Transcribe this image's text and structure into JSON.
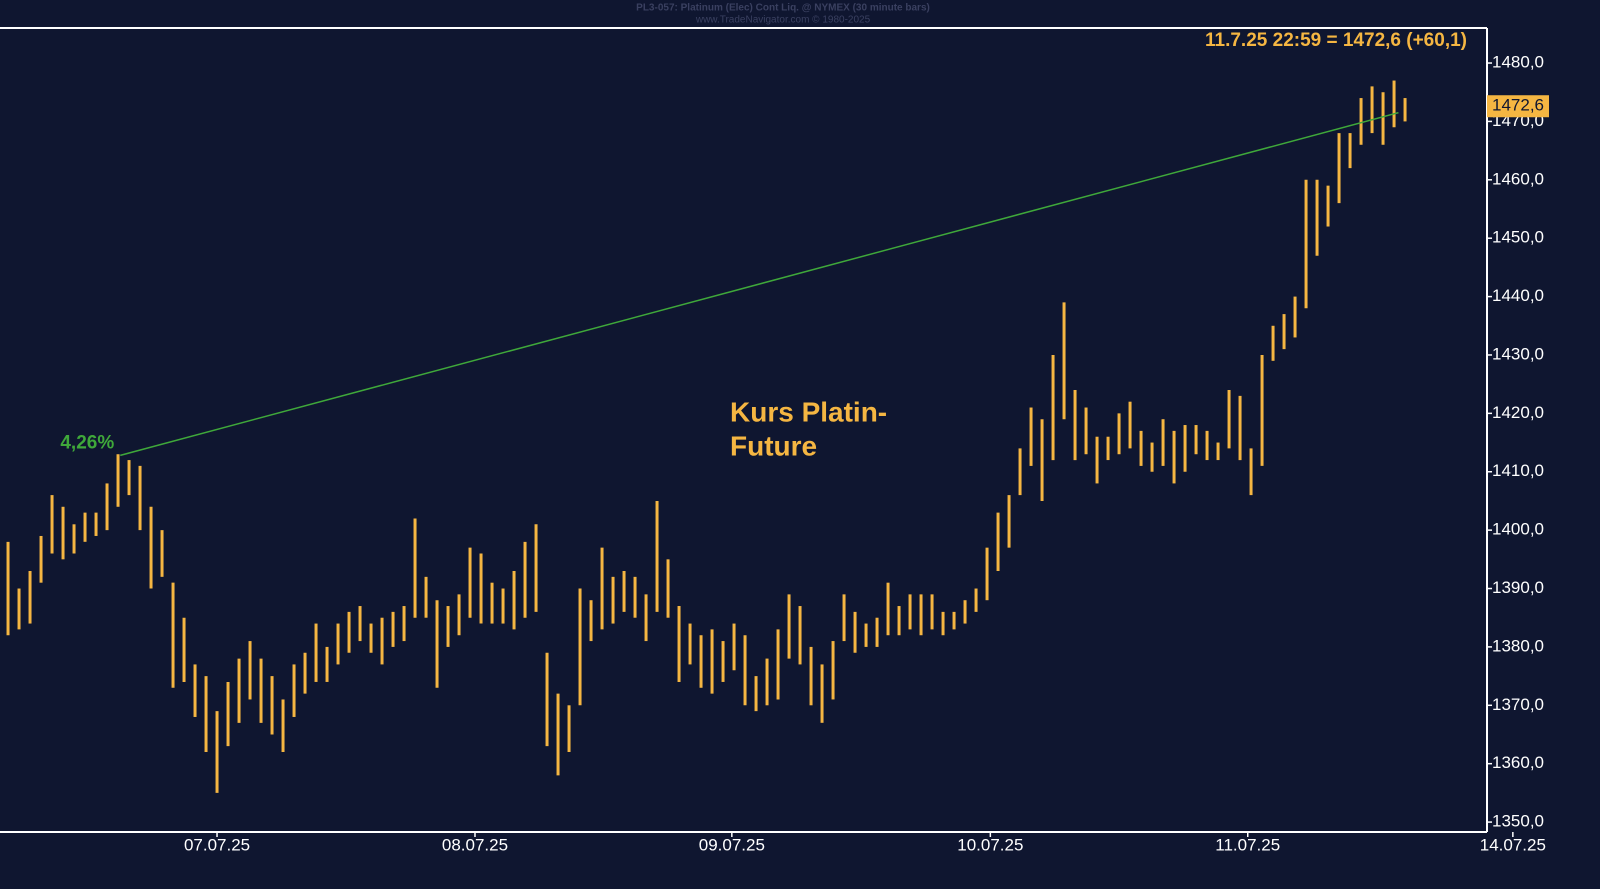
{
  "chart_data": {
    "type": "ohlc",
    "title": "PL3-057: Platinum (Elec) Cont Liq. @ NYMEX (30 minute bars)",
    "subtitle": "www.TradeNavigator.com © 1980-2025",
    "headline": "11.7.25 22:59 = 1472,6 (+60,1)",
    "annotation": [
      "Kurs Platin-",
      "Future"
    ],
    "last_price": {
      "value": 1472.6,
      "label": "1472,6"
    },
    "trendline": {
      "label": "4,26%",
      "x": [
        10.2,
        126.4
      ],
      "y": [
        1412.8,
        1471.5
      ],
      "color": "#3fa83a"
    },
    "color": "#f5b642",
    "x": [
      0,
      1,
      2,
      3,
      4,
      5,
      6,
      7,
      8,
      9,
      10,
      11,
      12,
      13,
      14,
      15,
      16,
      17,
      18,
      19,
      20,
      21,
      22,
      23,
      24,
      25,
      26,
      27,
      28,
      29,
      30,
      31,
      32,
      33,
      34,
      35,
      36,
      37,
      38,
      39,
      40,
      41,
      42,
      43,
      44,
      45,
      46,
      47,
      48,
      49,
      50,
      51,
      52,
      53,
      54,
      55,
      56,
      57,
      58,
      59,
      60,
      61,
      62,
      63,
      64,
      65,
      66,
      67,
      68,
      69,
      70,
      71,
      72,
      73,
      74,
      75,
      76,
      77,
      78,
      79,
      80,
      81,
      82,
      83,
      84,
      85,
      86,
      87,
      88,
      89,
      90,
      91,
      92,
      93,
      94,
      95,
      96,
      97,
      98,
      99,
      100,
      101,
      102,
      103,
      104,
      105,
      106,
      107,
      108,
      109,
      110,
      111,
      112,
      113,
      114,
      115,
      116,
      117,
      118,
      119,
      120,
      121,
      122,
      123,
      124,
      125,
      126,
      127
    ],
    "high": [
      1398,
      1390,
      1393,
      1399,
      1406,
      1404,
      1401,
      1403,
      1403,
      1408,
      1413,
      1412,
      1411,
      1404,
      1400,
      1391,
      1385,
      1377,
      1375,
      1369,
      1374,
      1378,
      1381,
      1378,
      1375,
      1371,
      1377,
      1379,
      1384,
      1380,
      1384,
      1386,
      1387,
      1384,
      1385,
      1386,
      1387,
      1402,
      1392,
      1388,
      1387,
      1389,
      1397,
      1396,
      1391,
      1390,
      1393,
      1398,
      1401,
      1379,
      1372,
      1370,
      1390,
      1388,
      1397,
      1392,
      1393,
      1392,
      1389,
      1405,
      1395,
      1387,
      1384,
      1382,
      1383,
      1381,
      1384,
      1382,
      1375,
      1378,
      1383,
      1389,
      1387,
      1380,
      1377,
      1381,
      1389,
      1386,
      1384,
      1385,
      1391,
      1387,
      1389,
      1389,
      1389,
      1386,
      1386,
      1388,
      1390,
      1397,
      1403,
      1406,
      1414,
      1421,
      1419,
      1430,
      1439,
      1424,
      1421,
      1416,
      1416,
      1420,
      1422,
      1417,
      1415,
      1419,
      1417,
      1418,
      1418,
      1417,
      1415,
      1424,
      1423,
      1414,
      1430,
      1435,
      1437,
      1440,
      1460,
      1460,
      1459,
      1468,
      1468,
      1474,
      1476,
      1475,
      1477,
      1474
    ],
    "low": [
      1382,
      1383,
      1384,
      1391,
      1396,
      1395,
      1396,
      1398,
      1399,
      1400,
      1404,
      1406,
      1400,
      1390,
      1392,
      1373,
      1374,
      1368,
      1362,
      1355,
      1363,
      1367,
      1371,
      1367,
      1365,
      1362,
      1368,
      1372,
      1374,
      1374,
      1377,
      1379,
      1381,
      1379,
      1377,
      1380,
      1381,
      1385,
      1385,
      1373,
      1380,
      1382,
      1385,
      1384,
      1384,
      1384,
      1383,
      1385,
      1386,
      1363,
      1358,
      1362,
      1370,
      1381,
      1383,
      1384,
      1386,
      1385,
      1381,
      1386,
      1385,
      1374,
      1377,
      1373,
      1372,
      1374,
      1376,
      1370,
      1369,
      1370,
      1371,
      1378,
      1377,
      1370,
      1367,
      1371,
      1381,
      1379,
      1380,
      1380,
      1382,
      1382,
      1383,
      1382,
      1383,
      1382,
      1383,
      1384,
      1386,
      1388,
      1393,
      1397,
      1406,
      1411,
      1405,
      1412,
      1419,
      1412,
      1413,
      1408,
      1412,
      1413,
      1414,
      1411,
      1410,
      1411,
      1408,
      1410,
      1413,
      1412,
      1412,
      1414,
      1412,
      1406,
      1411,
      1429,
      1431,
      1433,
      1438,
      1447,
      1452,
      1456,
      1462,
      1466,
      1468,
      1466,
      1469,
      1470
    ],
    "xlim": [
      -0.73,
      134.45
    ],
    "xticks": [
      {
        "value": 19.0,
        "label": "07.07.25"
      },
      {
        "value": 42.45,
        "label": "08.07.25"
      },
      {
        "value": 65.8,
        "label": "09.07.25"
      },
      {
        "value": 89.3,
        "label": "10.07.25"
      },
      {
        "value": 112.7,
        "label": "11.07.25"
      },
      {
        "value": 136.8,
        "label": "14.07.25"
      }
    ],
    "ylim": [
      1348.3,
      1486
    ],
    "yticks": [
      {
        "value": 1350,
        "label": "1350,0"
      },
      {
        "value": 1360,
        "label": "1360,0"
      },
      {
        "value": 1370,
        "label": "1370,0"
      },
      {
        "value": 1380,
        "label": "1380,0"
      },
      {
        "value": 1390,
        "label": "1390,0"
      },
      {
        "value": 1400,
        "label": "1400,0"
      },
      {
        "value": 1410,
        "label": "1410,0"
      },
      {
        "value": 1420,
        "label": "1420,0"
      },
      {
        "value": 1430,
        "label": "1430,0"
      },
      {
        "value": 1440,
        "label": "1440,0"
      },
      {
        "value": 1450,
        "label": "1450,0"
      },
      {
        "value": 1460,
        "label": "1460,0"
      },
      {
        "value": 1470,
        "label": "1470,0"
      },
      {
        "value": 1480,
        "label": "1480,0"
      }
    ]
  }
}
